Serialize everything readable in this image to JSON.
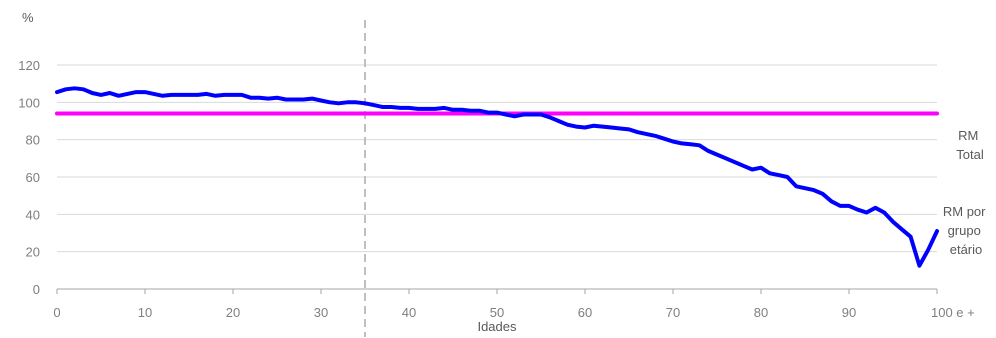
{
  "chart_data": {
    "type": "line",
    "ylabel": "%",
    "xlabel": "Idades",
    "ylim": [
      0,
      120
    ],
    "xlim": [
      0,
      100
    ],
    "y_ticks": [
      0,
      20,
      40,
      60,
      80,
      100,
      120
    ],
    "x_ticks": [
      0,
      10,
      20,
      30,
      40,
      50,
      60,
      70,
      80,
      90,
      100
    ],
    "x_tick_labels": [
      "0",
      "10",
      "20",
      "30",
      "40",
      "50",
      "60",
      "70",
      "80",
      "90",
      "100 e +"
    ],
    "grid": "horizontal",
    "reference_line_x": 35,
    "series": [
      {
        "name": "RM Total",
        "color": "#ff00ff",
        "x": [
          0,
          100
        ],
        "values": [
          94,
          94
        ]
      },
      {
        "name": "RM por grupo etário",
        "color": "#0000ff",
        "x": [
          0,
          1,
          2,
          3,
          4,
          5,
          6,
          7,
          8,
          9,
          10,
          11,
          12,
          13,
          14,
          15,
          16,
          17,
          18,
          19,
          20,
          21,
          22,
          23,
          24,
          25,
          26,
          27,
          28,
          29,
          30,
          31,
          32,
          33,
          34,
          35,
          36,
          37,
          38,
          39,
          40,
          41,
          42,
          43,
          44,
          45,
          46,
          47,
          48,
          49,
          50,
          51,
          52,
          53,
          54,
          55,
          56,
          57,
          58,
          59,
          60,
          61,
          62,
          63,
          64,
          65,
          66,
          67,
          68,
          69,
          70,
          71,
          72,
          73,
          74,
          75,
          76,
          77,
          78,
          79,
          80,
          81,
          82,
          83,
          84,
          85,
          86,
          87,
          88,
          89,
          90,
          91,
          92,
          93,
          94,
          95,
          96,
          97,
          98,
          99,
          100
        ],
        "values": [
          105.5,
          107,
          107.5,
          107,
          105,
          104,
          105,
          103.5,
          104.5,
          105.5,
          105.5,
          104.5,
          103.5,
          104,
          104,
          104,
          104,
          104.5,
          103.5,
          104,
          104,
          104,
          102.5,
          102.5,
          102,
          102.5,
          101.5,
          101.5,
          101.5,
          102,
          101,
          100,
          99.5,
          100,
          100,
          99.5,
          98.5,
          97.5,
          97.5,
          97,
          97,
          96.5,
          96.5,
          96.5,
          97,
          96,
          96,
          95.5,
          95.5,
          94.5,
          94.5,
          93.5,
          92.5,
          93.5,
          93.5,
          93.5,
          92,
          90,
          88,
          87,
          86.5,
          87.5,
          87,
          86.5,
          86,
          85.5,
          84,
          83,
          82,
          80.5,
          79,
          78,
          77.5,
          77,
          74,
          72,
          70,
          68,
          66,
          64,
          65,
          62,
          61,
          60,
          55,
          54,
          53,
          51,
          47,
          44.5,
          44.5,
          42.5,
          41,
          43.5,
          41,
          36,
          32,
          28,
          12.5,
          21,
          31
        ]
      }
    ]
  }
}
